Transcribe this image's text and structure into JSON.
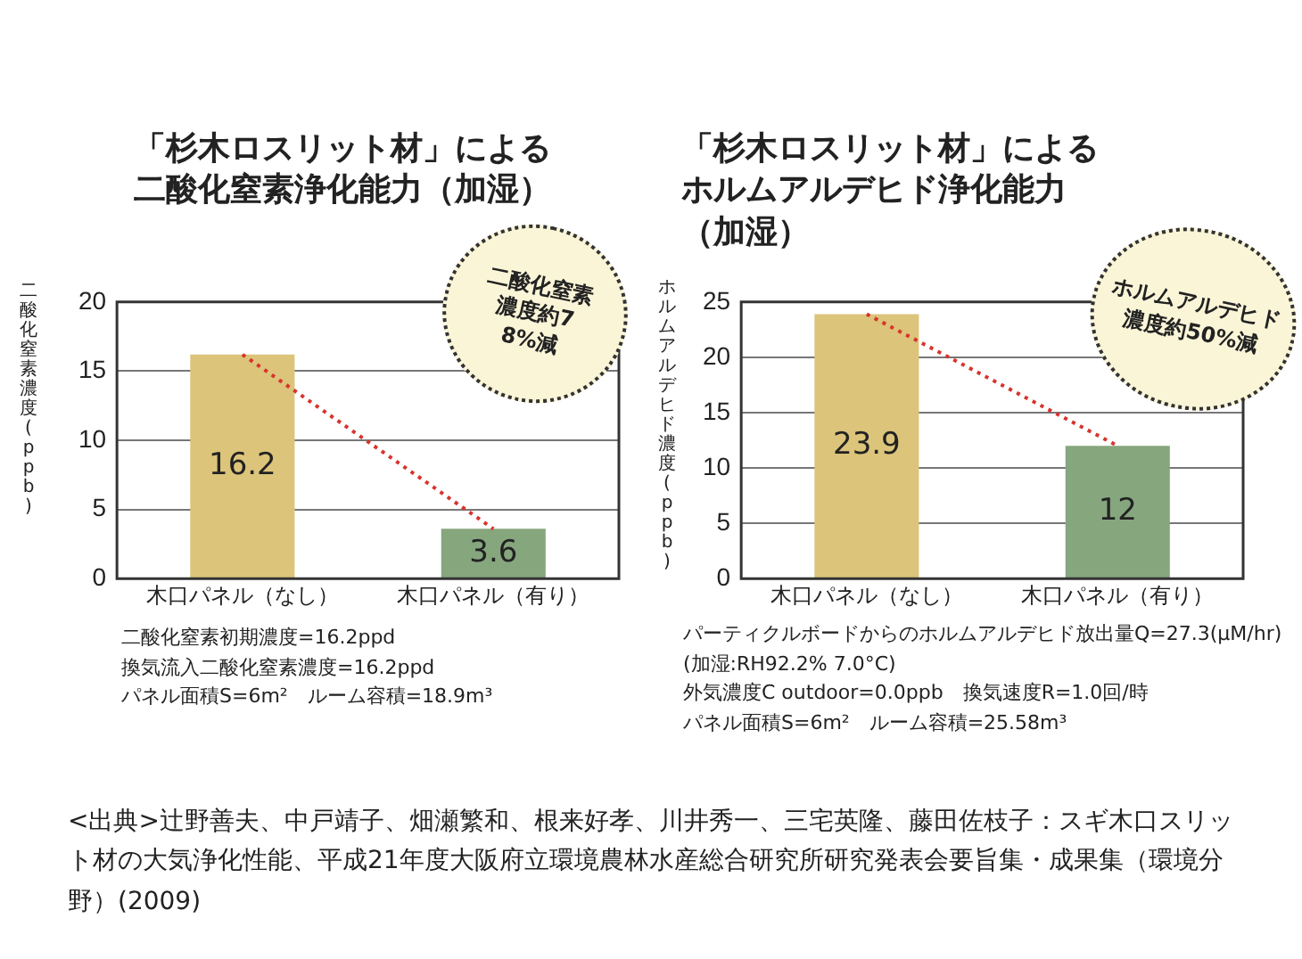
{
  "chart_data": [
    {
      "type": "bar",
      "title": "「杉木ロスリット材」による二酸化窒素浄化能力（加湿）",
      "ylabel": "二酸化窒素濃度(ppb)",
      "categories": [
        "木口パネル（なし）",
        "木口パネル（有り）"
      ],
      "series": [
        {
          "type": "bar",
          "colors": [
            "#dcc47a",
            "#86a67e"
          ],
          "values": [
            16.2,
            3.6
          ],
          "value_labels": [
            "16.2",
            "3.6"
          ]
        },
        {
          "type": "line",
          "color": "#d8332c",
          "line_style": "dotted",
          "marker": "none",
          "values": [
            16.2,
            3.6
          ]
        }
      ],
      "ylim": [
        0,
        20
      ],
      "yticks": [
        0,
        5,
        10,
        15,
        20
      ],
      "grid": "y",
      "legend": false,
      "annotations": [
        "二酸化窒素濃度約78%減",
        "二酸化窒素初期濃度=16.2ppd",
        "換気流入二酸化窒素濃度=16.2ppd",
        "パネル面積S=6m²　ルーム容積=18.9m³"
      ]
    },
    {
      "type": "bar",
      "title": "「杉木ロスリット材」によるホルムアルデヒド浄化能力（加湿）",
      "ylabel": "ホルムアルデヒド濃度(ppb)",
      "categories": [
        "木口パネル（なし）",
        "木口パネル（有り）"
      ],
      "series": [
        {
          "type": "bar",
          "colors": [
            "#dcc47a",
            "#86a67e"
          ],
          "values": [
            23.9,
            12
          ],
          "value_labels": [
            "23.9",
            "12"
          ]
        },
        {
          "type": "line",
          "color": "#d8332c",
          "line_style": "dotted",
          "marker": "none",
          "values": [
            23.9,
            12
          ]
        }
      ],
      "ylim": [
        0,
        25
      ],
      "yticks": [
        0,
        5,
        10,
        15,
        20,
        25
      ],
      "grid": "y",
      "legend": false,
      "annotations": [
        "ホルムアルデヒド濃度約50%減",
        "パーティクルボードからのホルムアルデヒド放出量Q=27.3(μM/hr)",
        "(加湿:RH92.2% 7.0°C)",
        "外気濃度C outdoor=0.0ppb　換気速度R=1.0回/時",
        "パネル面積S=6m²　ルーム容積=25.58m³"
      ]
    },
    {
      "type": "other",
      "annotations": [
        "<出典>辻野善夫、中戸靖子、畑瀬繁和、根来好孝、川井秀一、三宅英隆、藤田佐枝子：スギ木口スリット材の大気浄化性能、平成21年度大阪府立環境農林水産総合研究所研究発表会要旨集・成果集（環境分野）(2009)"
      ]
    }
  ]
}
